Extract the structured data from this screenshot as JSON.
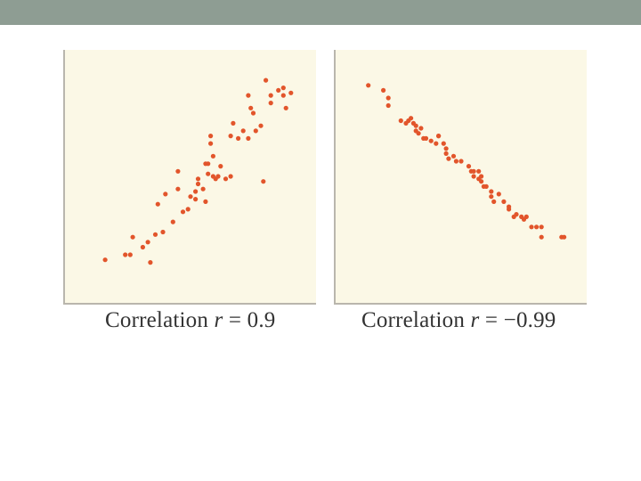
{
  "colors": {
    "topbar": "#8e9d93",
    "plot_background": "#fbf8e6",
    "axis": "#b9b6ad",
    "point": "#e2552b",
    "caption_text": "#333333"
  },
  "chart_data": [
    {
      "type": "scatter",
      "caption": {
        "prefix": "Correlation ",
        "var": "r",
        "value": " = 0.9"
      },
      "xlim": [
        0,
        100
      ],
      "ylim": [
        0,
        100
      ],
      "axis_ticks": false,
      "grid": false,
      "points": [
        [
          16,
          17
        ],
        [
          24,
          19
        ],
        [
          26,
          19
        ],
        [
          27,
          26
        ],
        [
          31,
          22
        ],
        [
          33,
          24
        ],
        [
          34,
          16
        ],
        [
          36,
          27
        ],
        [
          37,
          39
        ],
        [
          39,
          28
        ],
        [
          40,
          43
        ],
        [
          43,
          32
        ],
        [
          45,
          45
        ],
        [
          45,
          52
        ],
        [
          47,
          36
        ],
        [
          49,
          37
        ],
        [
          50,
          42
        ],
        [
          52,
          44
        ],
        [
          52,
          41
        ],
        [
          53,
          47
        ],
        [
          53,
          49
        ],
        [
          55,
          45
        ],
        [
          56,
          40
        ],
        [
          56,
          55
        ],
        [
          57,
          55
        ],
        [
          57,
          51
        ],
        [
          58,
          63
        ],
        [
          58,
          66
        ],
        [
          59,
          58
        ],
        [
          59,
          50
        ],
        [
          60,
          49
        ],
        [
          61,
          50
        ],
        [
          62,
          54
        ],
        [
          64,
          49
        ],
        [
          66,
          50
        ],
        [
          66,
          66
        ],
        [
          67,
          71
        ],
        [
          69,
          65
        ],
        [
          71,
          68
        ],
        [
          73,
          65
        ],
        [
          73,
          82
        ],
        [
          74,
          77
        ],
        [
          75,
          75
        ],
        [
          76,
          68
        ],
        [
          79,
          48
        ],
        [
          78,
          70
        ],
        [
          80,
          88
        ],
        [
          82,
          82
        ],
        [
          82,
          79
        ],
        [
          85,
          84
        ],
        [
          87,
          85
        ],
        [
          87,
          82
        ],
        [
          90,
          83
        ],
        [
          88,
          77
        ]
      ]
    },
    {
      "type": "scatter",
      "caption": {
        "prefix": "Correlation ",
        "var": "r",
        "value": " = −0.99"
      },
      "xlim": [
        0,
        100
      ],
      "ylim": [
        0,
        100
      ],
      "axis_ticks": false,
      "grid": false,
      "points": [
        [
          13,
          86
        ],
        [
          19,
          84
        ],
        [
          21,
          81
        ],
        [
          21,
          78
        ],
        [
          26,
          72
        ],
        [
          28,
          71
        ],
        [
          29,
          72
        ],
        [
          30,
          73
        ],
        [
          31,
          71
        ],
        [
          32,
          70
        ],
        [
          32,
          68
        ],
        [
          33,
          67
        ],
        [
          34,
          69
        ],
        [
          35,
          65
        ],
        [
          36,
          65
        ],
        [
          38,
          64
        ],
        [
          40,
          63
        ],
        [
          41,
          66
        ],
        [
          41,
          66
        ],
        [
          43,
          63
        ],
        [
          44,
          61
        ],
        [
          44,
          59
        ],
        [
          45,
          57
        ],
        [
          47,
          58
        ],
        [
          48,
          56
        ],
        [
          50,
          56
        ],
        [
          53,
          54
        ],
        [
          54,
          52
        ],
        [
          55,
          52
        ],
        [
          55,
          50
        ],
        [
          57,
          52
        ],
        [
          57,
          49
        ],
        [
          58,
          50
        ],
        [
          58,
          48
        ],
        [
          59,
          46
        ],
        [
          60,
          46
        ],
        [
          62,
          42
        ],
        [
          62,
          44
        ],
        [
          63,
          40
        ],
        [
          65,
          43
        ],
        [
          67,
          40
        ],
        [
          69,
          38
        ],
        [
          69,
          37
        ],
        [
          71,
          34
        ],
        [
          72,
          35
        ],
        [
          74,
          34
        ],
        [
          75,
          33
        ],
        [
          76,
          34
        ],
        [
          78,
          30
        ],
        [
          80,
          30
        ],
        [
          82,
          30
        ],
        [
          82,
          26
        ],
        [
          90,
          26
        ],
        [
          91,
          26
        ]
      ]
    }
  ]
}
